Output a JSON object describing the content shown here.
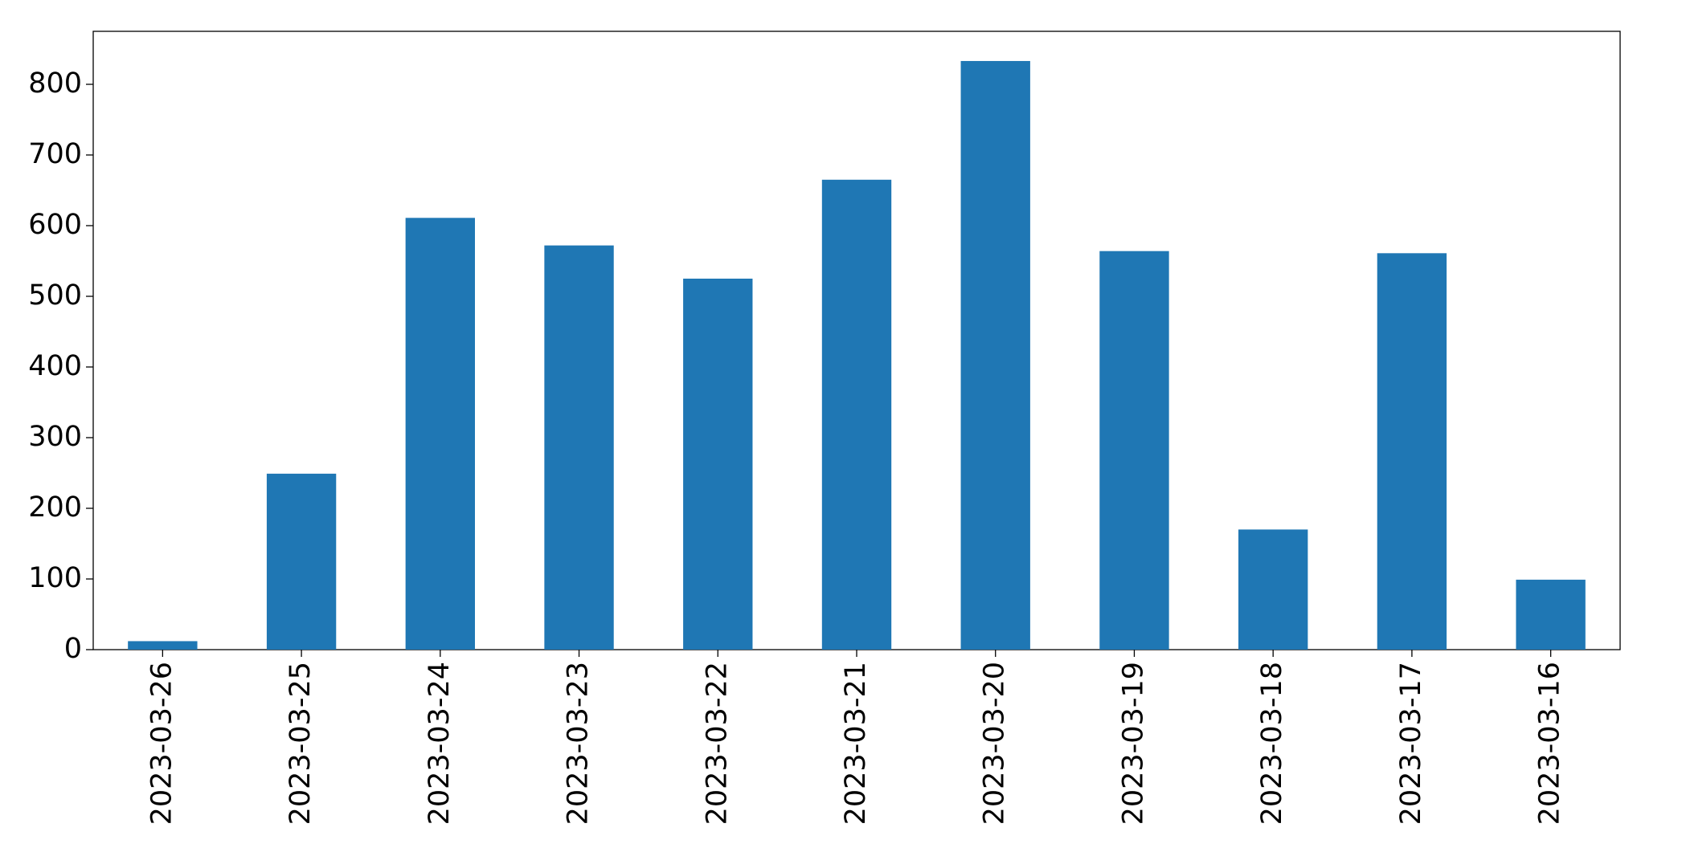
{
  "chart_data": {
    "type": "bar",
    "categories": [
      "2023-03-26",
      "2023-03-25",
      "2023-03-24",
      "2023-03-23",
      "2023-03-22",
      "2023-03-21",
      "2023-03-20",
      "2023-03-19",
      "2023-03-18",
      "2023-03-17",
      "2023-03-16"
    ],
    "values": [
      12,
      249,
      611,
      572,
      525,
      665,
      833,
      564,
      170,
      561,
      99
    ],
    "color": "#1f77b4",
    "ylim": [
      0,
      875
    ],
    "yticks": [
      0,
      100,
      200,
      300,
      400,
      500,
      600,
      700,
      800
    ],
    "grid": false
  }
}
